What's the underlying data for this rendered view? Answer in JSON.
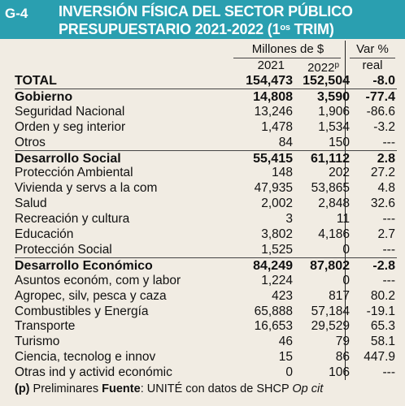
{
  "header": {
    "fig_id": "G-4",
    "title_line1": "INVERSIÓN FÍSICA DEL SECTOR PÚBLICO",
    "title_line2_main": "PRESUPUESTARIO 2021-2022 (1",
    "title_line2_sup": "os",
    "title_line2_end": " TRIM)"
  },
  "columns": {
    "unit": "Millones de $",
    "var": "Var %",
    "year1": "2021",
    "year2": "2022",
    "year2_sup": "p",
    "real": "real"
  },
  "rows": [
    {
      "label": "TOTAL",
      "v1": "154,473",
      "v2": "152,504",
      "v3": "-8.0",
      "bold": true
    },
    {
      "label": "Gobierno",
      "v1": "14,808",
      "v2": "3,590",
      "v3": "-77.4",
      "bold": true
    },
    {
      "label": "Seguridad Nacional",
      "v1": "13,246",
      "v2": "1,906",
      "v3": "-86.6",
      "bold": false
    },
    {
      "label": "Orden y seg interior",
      "v1": "1,478",
      "v2": "1,534",
      "v3": "-3.2",
      "bold": false
    },
    {
      "label": "Otros",
      "v1": "84",
      "v2": "150",
      "v3": "---",
      "bold": false
    },
    {
      "label": "Desarrollo Social",
      "v1": "55,415",
      "v2": "61,112",
      "v3": "2.8",
      "bold": true
    },
    {
      "label": "Protección Ambiental",
      "v1": "148",
      "v2": "202",
      "v3": "27.2",
      "bold": false
    },
    {
      "label": "Vivienda y servs a la com",
      "v1": "47,935",
      "v2": "53,865",
      "v3": "4.8",
      "bold": false
    },
    {
      "label": "Salud",
      "v1": "2,002",
      "v2": "2,848",
      "v3": "32.6",
      "bold": false
    },
    {
      "label": "Recreación y cultura",
      "v1": "3",
      "v2": "11",
      "v3": "---",
      "bold": false
    },
    {
      "label": "Educación",
      "v1": "3,802",
      "v2": "4,186",
      "v3": "2.7",
      "bold": false
    },
    {
      "label": "Protección Social",
      "v1": "1,525",
      "v2": "0",
      "v3": "---",
      "bold": false
    },
    {
      "label": "Desarrollo Económico",
      "v1": "84,249",
      "v2": "87,802",
      "v3": "-2.8",
      "bold": true
    },
    {
      "label": "Asuntos económ, com y labor",
      "v1": "1,224",
      "v2": "0",
      "v3": "---",
      "bold": false
    },
    {
      "label": "Agropec, silv, pesca y caza",
      "v1": "423",
      "v2": "817",
      "v3": "80.2",
      "bold": false
    },
    {
      "label": "Combustibles y Energía",
      "v1": "65,888",
      "v2": "57,184",
      "v3": "-19.1",
      "bold": false
    },
    {
      "label": "Transporte",
      "v1": "16,653",
      "v2": "29,529",
      "v3": "65.3",
      "bold": false
    },
    {
      "label": "Turismo",
      "v1": "46",
      "v2": "79",
      "v3": "58.1",
      "bold": false
    },
    {
      "label": "Ciencia, tecnolog e innov",
      "v1": "15",
      "v2": "86",
      "v3": "447.9",
      "bold": false
    },
    {
      "label": "Otras ind y activid económic",
      "v1": "0",
      "v2": "106",
      "v3": "---",
      "bold": false
    }
  ],
  "footer": {
    "p_mark": "(p)",
    "p_text": " Preliminares ",
    "source_label": "Fuente",
    "source_text": ": UNITÉ con datos de SHCP ",
    "op_cit": "Op cit"
  },
  "colors": {
    "header_bg": "#2a9fb0",
    "body_bg": "#f1ece3"
  }
}
